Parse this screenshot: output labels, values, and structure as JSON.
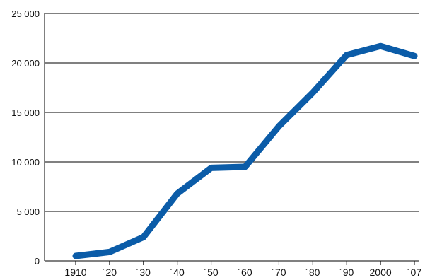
{
  "chart_data": {
    "type": "line",
    "title": "",
    "xlabel": "",
    "ylabel": "",
    "categories": [
      "1910",
      "´20",
      "´30",
      "´40",
      "´50",
      "´60",
      "´70",
      "´80",
      "´90",
      "2000",
      "´07"
    ],
    "series": [
      {
        "values": [
          500,
          900,
          2400,
          6800,
          9400,
          9500,
          13600,
          17000,
          20800,
          21700,
          20700
        ]
      }
    ],
    "yticks": [
      0,
      5000,
      10000,
      15000,
      20000,
      25000
    ],
    "ytick_labels": [
      "0",
      "5 000",
      "10 000",
      "15 000",
      "20 000",
      "25 000"
    ],
    "ylim": [
      0,
      25000
    ],
    "grid": true,
    "legend": "none",
    "line_color": "#0b5ca8",
    "grid_color": "#000000"
  }
}
